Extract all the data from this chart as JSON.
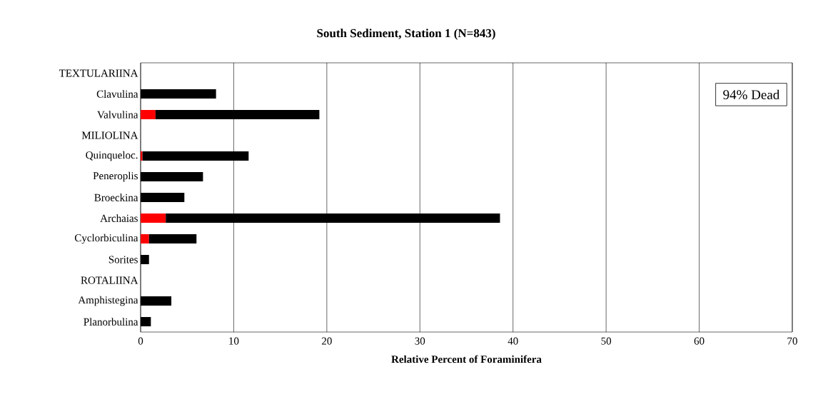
{
  "chart_data": {
    "type": "bar",
    "orientation": "horizontal",
    "stacked": true,
    "title": "South Sediment, Station 1 (N=843)",
    "xlabel": "Relative Percent of Foraminifera",
    "categories": [
      "TEXTULARIINA",
      "Clavulina",
      "Valvulina",
      "MILIOLINA",
      "Quinqueloc.",
      "Peneroplis",
      "Broeckina",
      "Archaias",
      "Cyclorbiculina",
      "Sorites",
      "ROTALIINA",
      "Amphistegina",
      "Planorbulina"
    ],
    "series": [
      {
        "color": "#ff0000",
        "values": [
          null,
          null,
          1.6,
          null,
          0.2,
          null,
          null,
          2.7,
          0.9,
          null,
          null,
          null,
          null
        ]
      },
      {
        "color": "#000000",
        "values": [
          null,
          8.1,
          17.6,
          null,
          11.4,
          6.7,
          4.7,
          35.9,
          5.1,
          0.9,
          null,
          3.3,
          1.1
        ]
      }
    ],
    "xlim": [
      0,
      70
    ],
    "xticks": [
      0,
      10,
      20,
      30,
      40,
      50,
      60,
      70
    ],
    "grid": "x",
    "annotations": [
      "94% Dead"
    ]
  }
}
